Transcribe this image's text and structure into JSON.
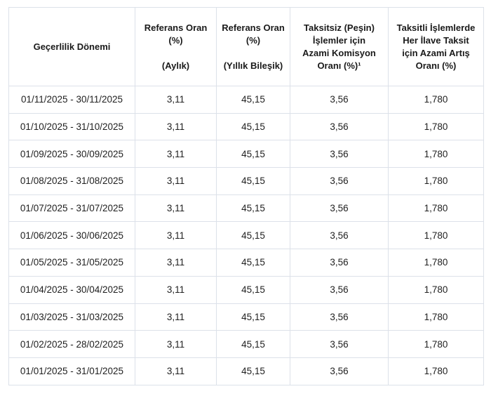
{
  "page": {
    "background_color": "#ffffff",
    "border_color": "#dce1e9",
    "text_color": "#1f1f1f"
  },
  "table": {
    "headers": [
      {
        "lines": [
          "Geçerlilik Dönemi",
          "",
          "",
          ""
        ]
      },
      {
        "lines": [
          "Referans Oran",
          "(%)",
          "",
          "(Aylık)"
        ]
      },
      {
        "lines": [
          "Referans Oran",
          "(%)",
          "",
          "(Yıllık Bileşik)"
        ]
      },
      {
        "lines": [
          "Taksitsiz (Peşin)",
          "İşlemler için",
          "Azami Komisyon",
          "Oranı (%)¹"
        ]
      },
      {
        "lines": [
          "Taksitli İşlemlerde",
          "Her İlave Taksit",
          "için Azami Artış",
          "Oranı (%)"
        ]
      }
    ],
    "rows": [
      [
        "01/11/2025 - 30/11/2025",
        "3,11",
        "45,15",
        "3,56",
        "1,780"
      ],
      [
        "01/10/2025 - 31/10/2025",
        "3,11",
        "45,15",
        "3,56",
        "1,780"
      ],
      [
        "01/09/2025 - 30/09/2025",
        "3,11",
        "45,15",
        "3,56",
        "1,780"
      ],
      [
        "01/08/2025 - 31/08/2025",
        "3,11",
        "45,15",
        "3,56",
        "1,780"
      ],
      [
        "01/07/2025 - 31/07/2025",
        "3,11",
        "45,15",
        "3,56",
        "1,780"
      ],
      [
        "01/06/2025 - 30/06/2025",
        "3,11",
        "45,15",
        "3,56",
        "1,780"
      ],
      [
        "01/05/2025 - 31/05/2025",
        "3,11",
        "45,15",
        "3,56",
        "1,780"
      ],
      [
        "01/04/2025 - 30/04/2025",
        "3,11",
        "45,15",
        "3,56",
        "1,780"
      ],
      [
        "01/03/2025 - 31/03/2025",
        "3,11",
        "45,15",
        "3,56",
        "1,780"
      ],
      [
        "01/02/2025 - 28/02/2025",
        "3,11",
        "45,15",
        "3,56",
        "1,780"
      ],
      [
        "01/01/2025 - 31/01/2025",
        "3,11",
        "45,15",
        "3,56",
        "1,780"
      ]
    ]
  }
}
